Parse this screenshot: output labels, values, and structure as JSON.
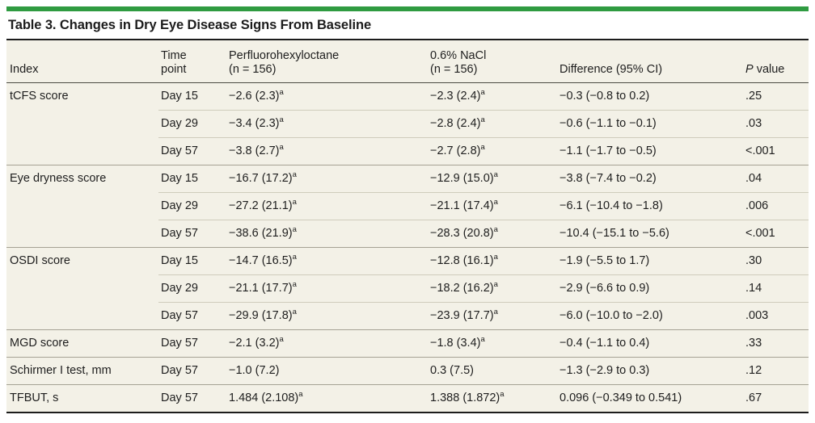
{
  "colors": {
    "accent_green": "#2f9b41",
    "table_bg": "#f3f1e7",
    "rule_dark": "#1c1c1c",
    "header_rule": "#4a4a42",
    "group_divider": "#a5a294",
    "row_divider": "#cfccbc",
    "text": "#1e1e1e"
  },
  "table": {
    "title": "Table 3. Changes in Dry Eye Disease Signs From Baseline",
    "columns": [
      {
        "label": "Index"
      },
      {
        "label": "Time\npoint"
      },
      {
        "label": "Perfluorohexyloctane\n(n = 156)"
      },
      {
        "label": "0.6% NaCl\n(n = 156)"
      },
      {
        "label": "Difference (95% CI)"
      },
      {
        "p_italic": "P",
        "label_rest": " value"
      }
    ],
    "footnote_marker": "a",
    "groups": [
      {
        "index": "tCFS score",
        "rows": [
          {
            "time": "Day 15",
            "pfho": {
              "v": "−2.6 (2.3)",
              "sup": "a"
            },
            "nacl": {
              "v": "−2.3 (2.4)",
              "sup": "a"
            },
            "diff": "−0.3 (−0.8 to 0.2)",
            "p": ".25"
          },
          {
            "time": "Day 29",
            "pfho": {
              "v": "−3.4 (2.3)",
              "sup": "a"
            },
            "nacl": {
              "v": "−2.8 (2.4)",
              "sup": "a"
            },
            "diff": "−0.6 (−1.1 to −0.1)",
            "p": ".03"
          },
          {
            "time": "Day 57",
            "pfho": {
              "v": "−3.8 (2.7)",
              "sup": "a"
            },
            "nacl": {
              "v": "−2.7 (2.8)",
              "sup": "a"
            },
            "diff": "−1.1 (−1.7 to −0.5)",
            "p": "<.001"
          }
        ]
      },
      {
        "index": "Eye dryness score",
        "rows": [
          {
            "time": "Day 15",
            "pfho": {
              "v": "−16.7 (17.2)",
              "sup": "a"
            },
            "nacl": {
              "v": "−12.9 (15.0)",
              "sup": "a"
            },
            "diff": "−3.8 (−7.4 to −0.2)",
            "p": ".04"
          },
          {
            "time": "Day 29",
            "pfho": {
              "v": "−27.2 (21.1)",
              "sup": "a"
            },
            "nacl": {
              "v": "−21.1 (17.4)",
              "sup": "a"
            },
            "diff": "−6.1 (−10.4 to −1.8)",
            "p": ".006"
          },
          {
            "time": "Day 57",
            "pfho": {
              "v": "−38.6 (21.9)",
              "sup": "a"
            },
            "nacl": {
              "v": "−28.3 (20.8)",
              "sup": "a"
            },
            "diff": "−10.4 (−15.1 to −5.6)",
            "p": "<.001"
          }
        ]
      },
      {
        "index": "OSDI score",
        "rows": [
          {
            "time": "Day 15",
            "pfho": {
              "v": "−14.7 (16.5)",
              "sup": "a"
            },
            "nacl": {
              "v": "−12.8 (16.1)",
              "sup": "a"
            },
            "diff": "−1.9 (−5.5 to 1.7)",
            "p": ".30"
          },
          {
            "time": "Day 29",
            "pfho": {
              "v": "−21.1 (17.7)",
              "sup": "a"
            },
            "nacl": {
              "v": "−18.2 (16.2)",
              "sup": "a"
            },
            "diff": "−2.9 (−6.6 to 0.9)",
            "p": ".14"
          },
          {
            "time": "Day 57",
            "pfho": {
              "v": "−29.9 (17.8)",
              "sup": "a"
            },
            "nacl": {
              "v": "−23.9 (17.7)",
              "sup": "a"
            },
            "diff": "−6.0 (−10.0 to −2.0)",
            "p": ".003"
          }
        ]
      },
      {
        "index": "MGD score",
        "rows": [
          {
            "time": "Day 57",
            "pfho": {
              "v": "−2.1 (3.2)",
              "sup": "a"
            },
            "nacl": {
              "v": "−1.8 (3.4)",
              "sup": "a"
            },
            "diff": "−0.4 (−1.1 to 0.4)",
            "p": ".33"
          }
        ]
      },
      {
        "index": "Schirmer I test, mm",
        "rows": [
          {
            "time": "Day 57",
            "pfho": {
              "v": "−1.0 (7.2)",
              "sup": null
            },
            "nacl": {
              "v": "0.3 (7.5)",
              "sup": null
            },
            "diff": "−1.3 (−2.9 to 0.3)",
            "p": ".12"
          }
        ]
      },
      {
        "index": "TFBUT, s",
        "rows": [
          {
            "time": "Day 57",
            "pfho": {
              "v": "1.484 (2.108)",
              "sup": "a"
            },
            "nacl": {
              "v": "1.388 (1.872)",
              "sup": "a"
            },
            "diff": "0.096 (−0.349 to 0.541)",
            "p": ".67"
          }
        ]
      }
    ]
  }
}
